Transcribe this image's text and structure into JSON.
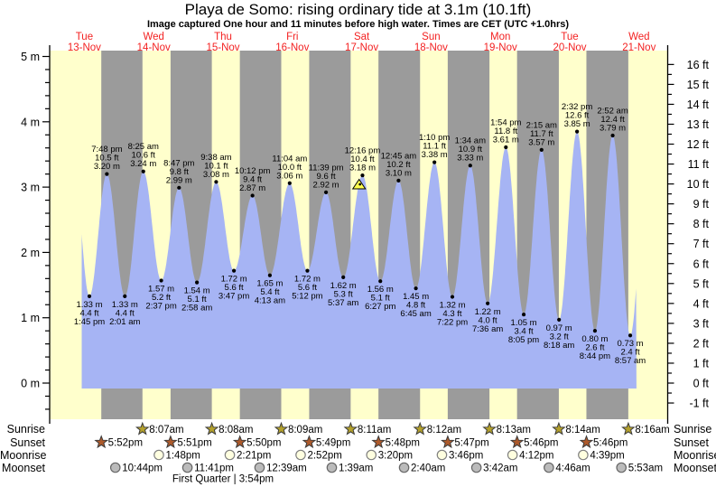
{
  "title": "Playa de Somo: rising  ordinary tide at 3.1m (10.1ft)",
  "subtitle": "Image captured One hour and 11 minutes before high water. Times are CET (UTC +1.0hrs)",
  "colors": {
    "day_band": "#ffffcc",
    "night_band": "#9b9b9b",
    "water": "#a6b4f4",
    "day_label": "#f32121",
    "sunrise_star": "#b3a02c",
    "sunset_star": "#ad5a2b",
    "moonrise_fill": "#ffffe0",
    "moonset_fill": "#bbbbbb",
    "marker_triangle": "#ffff4d"
  },
  "days": [
    {
      "name": "Tue",
      "date": "13-Nov"
    },
    {
      "name": "Wed",
      "date": "14-Nov"
    },
    {
      "name": "Thu",
      "date": "15-Nov"
    },
    {
      "name": "Fri",
      "date": "16-Nov"
    },
    {
      "name": "Sat",
      "date": "17-Nov"
    },
    {
      "name": "Sun",
      "date": "18-Nov"
    },
    {
      "name": "Mon",
      "date": "19-Nov"
    },
    {
      "name": "Tue",
      "date": "20-Nov"
    },
    {
      "name": "Wed",
      "date": "21-Nov"
    }
  ],
  "axes": {
    "left_ticks": [
      {
        "value": 5,
        "label": "5 m"
      },
      {
        "value": 4,
        "label": "4 m"
      },
      {
        "value": 3,
        "label": "3 m"
      },
      {
        "value": 2,
        "label": "2 m"
      },
      {
        "value": 1,
        "label": "1 m"
      },
      {
        "value": 0,
        "label": "0 m"
      }
    ],
    "right_ticks": [
      {
        "value": 16,
        "label": "16 ft"
      },
      {
        "value": 15,
        "label": "15 ft"
      },
      {
        "value": 14,
        "label": "14 ft"
      },
      {
        "value": 13,
        "label": "13 ft"
      },
      {
        "value": 12,
        "label": "12 ft"
      },
      {
        "value": 11,
        "label": "11 ft"
      },
      {
        "value": 10,
        "label": "10 ft"
      },
      {
        "value": 9,
        "label": "9 ft"
      },
      {
        "value": 8,
        "label": "8 ft"
      },
      {
        "value": 7,
        "label": "7 ft"
      },
      {
        "value": 6,
        "label": "6 ft"
      },
      {
        "value": 5,
        "label": "5 ft"
      },
      {
        "value": 4,
        "label": "4 ft"
      },
      {
        "value": 3,
        "label": "3 ft"
      },
      {
        "value": 2,
        "label": "2 ft"
      },
      {
        "value": 1,
        "label": "1 ft"
      },
      {
        "value": 0,
        "label": "0 ft"
      },
      {
        "value": -1,
        "label": "-1 ft"
      }
    ]
  },
  "chart_data": {
    "type": "area",
    "title": "Playa de Somo: rising  ordinary tide at 3.1m (10.1ft)",
    "ylabel_left": "m",
    "ylabel_right": "ft",
    "ylim_m": [
      -0.6,
      5.1
    ],
    "x_range": "Tue 13-Nov 00:00 to Wed 21-Nov ~14:00",
    "tide_events": [
      {
        "kind": "low",
        "day": 0,
        "hour": 13.75,
        "time": "1:45 pm",
        "ft": "4.4 ft",
        "m": "1.33 m",
        "h": 1.33
      },
      {
        "kind": "high",
        "day": 0,
        "hour": 19.8,
        "time": "7:48 pm",
        "ft": "10.5 ft",
        "m": "3.20 m",
        "h": 3.2
      },
      {
        "kind": "low",
        "day": 1,
        "hour": 2.02,
        "time": "2:01 am",
        "ft": "4.4 ft",
        "m": "1.33 m",
        "h": 1.33
      },
      {
        "kind": "high",
        "day": 1,
        "hour": 8.42,
        "time": "8:25 am",
        "ft": "10.6 ft",
        "m": "3.24 m",
        "h": 3.24
      },
      {
        "kind": "low",
        "day": 1,
        "hour": 14.62,
        "time": "2:37 pm",
        "ft": "5.2 ft",
        "m": "1.57 m",
        "h": 1.57
      },
      {
        "kind": "high",
        "day": 1,
        "hour": 20.78,
        "time": "8:47 pm",
        "ft": "9.8 ft",
        "m": "2.99 m",
        "h": 2.99
      },
      {
        "kind": "low",
        "day": 2,
        "hour": 2.97,
        "time": "2:58 am",
        "ft": "5.1 ft",
        "m": "1.54 m",
        "h": 1.54
      },
      {
        "kind": "high",
        "day": 2,
        "hour": 9.63,
        "time": "9:38 am",
        "ft": "10.1 ft",
        "m": "3.08 m",
        "h": 3.08
      },
      {
        "kind": "low",
        "day": 2,
        "hour": 15.78,
        "time": "3:47 pm",
        "ft": "5.6 ft",
        "m": "1.72 m",
        "h": 1.72
      },
      {
        "kind": "high",
        "day": 2,
        "hour": 22.2,
        "time": "10:12 pm",
        "ft": "9.4 ft",
        "m": "2.87 m",
        "h": 2.87
      },
      {
        "kind": "low",
        "day": 3,
        "hour": 4.22,
        "time": "4:13 am",
        "ft": "5.4 ft",
        "m": "1.65 m",
        "h": 1.65
      },
      {
        "kind": "high",
        "day": 3,
        "hour": 11.07,
        "time": "11:04 am",
        "ft": "10.0 ft",
        "m": "3.06 m",
        "h": 3.06
      },
      {
        "kind": "low",
        "day": 3,
        "hour": 17.2,
        "time": "5:12 pm",
        "ft": "5.6 ft",
        "m": "1.72 m",
        "h": 1.72
      },
      {
        "kind": "high",
        "day": 3,
        "hour": 23.65,
        "time": "11:39 pm",
        "ft": "9.6 ft",
        "m": "2.92 m",
        "h": 2.92
      },
      {
        "kind": "low",
        "day": 4,
        "hour": 5.62,
        "time": "5:37 am",
        "ft": "5.3 ft",
        "m": "1.62 m",
        "h": 1.62
      },
      {
        "kind": "high",
        "day": 4,
        "hour": 12.27,
        "time": "12:16 pm",
        "ft": "10.4 ft",
        "m": "3.18 m",
        "h": 3.18
      },
      {
        "kind": "low",
        "day": 4,
        "hour": 18.45,
        "time": "6:27 pm",
        "ft": "5.1 ft",
        "m": "1.56 m",
        "h": 1.56
      },
      {
        "kind": "high",
        "day": 5,
        "hour": 0.75,
        "time": "12:45 am",
        "ft": "10.2 ft",
        "m": "3.10 m",
        "h": 3.1
      },
      {
        "kind": "low",
        "day": 5,
        "hour": 6.75,
        "time": "6:45 am",
        "ft": "4.8 ft",
        "m": "1.45 m",
        "h": 1.45
      },
      {
        "kind": "high",
        "day": 5,
        "hour": 13.17,
        "time": "1:10 pm",
        "ft": "11.1 ft",
        "m": "3.38 m",
        "h": 3.38
      },
      {
        "kind": "low",
        "day": 5,
        "hour": 19.37,
        "time": "7:22 pm",
        "ft": "4.3 ft",
        "m": "1.32 m",
        "h": 1.32
      },
      {
        "kind": "high",
        "day": 6,
        "hour": 1.57,
        "time": "1:34 am",
        "ft": "10.9 ft",
        "m": "3.33 m",
        "h": 3.33
      },
      {
        "kind": "low",
        "day": 6,
        "hour": 7.6,
        "time": "7:36 am",
        "ft": "4.0 ft",
        "m": "1.22 m",
        "h": 1.22
      },
      {
        "kind": "high",
        "day": 6,
        "hour": 13.9,
        "time": "1:54 pm",
        "ft": "11.8 ft",
        "m": "3.61 m",
        "h": 3.61
      },
      {
        "kind": "low",
        "day": 6,
        "hour": 20.08,
        "time": "8:05 pm",
        "ft": "3.4 ft",
        "m": "1.05 m",
        "h": 1.05
      },
      {
        "kind": "high",
        "day": 7,
        "hour": 2.25,
        "time": "2:15 am",
        "ft": "11.7 ft",
        "m": "3.57 m",
        "h": 3.57
      },
      {
        "kind": "low",
        "day": 7,
        "hour": 8.3,
        "time": "8:18 am",
        "ft": "3.2 ft",
        "m": "0.97 m",
        "h": 0.97
      },
      {
        "kind": "high",
        "day": 7,
        "hour": 14.53,
        "time": "2:32 pm",
        "ft": "12.6 ft",
        "m": "3.85 m",
        "h": 3.85
      },
      {
        "kind": "low",
        "day": 7,
        "hour": 20.73,
        "time": "8:44 pm",
        "ft": "2.6 ft",
        "m": "0.80 m",
        "h": 0.8
      },
      {
        "kind": "high",
        "day": 8,
        "hour": 2.87,
        "time": "2:52 am",
        "ft": "12.4 ft",
        "m": "3.79 m",
        "h": 3.79
      },
      {
        "kind": "low",
        "day": 8,
        "hour": 8.95,
        "time": "8:57 am",
        "ft": "2.4 ft",
        "m": "0.73 m",
        "h": 0.73
      }
    ],
    "current_marker": {
      "day": 4,
      "hour": 11.1
    }
  },
  "sun_moon": {
    "row_labels": [
      "Sunrise",
      "Sunset",
      "Moonrise",
      "Moonset"
    ],
    "sunrise": [
      {
        "day": 1,
        "hour": 8.12,
        "time": "8:07am"
      },
      {
        "day": 2,
        "hour": 8.13,
        "time": "8:08am"
      },
      {
        "day": 3,
        "hour": 8.15,
        "time": "8:09am"
      },
      {
        "day": 4,
        "hour": 8.18,
        "time": "8:11am"
      },
      {
        "day": 5,
        "hour": 8.2,
        "time": "8:12am"
      },
      {
        "day": 6,
        "hour": 8.22,
        "time": "8:13am"
      },
      {
        "day": 7,
        "hour": 8.23,
        "time": "8:14am"
      },
      {
        "day": 8,
        "hour": 8.27,
        "time": "8:16am"
      }
    ],
    "sunset": [
      {
        "day": 0,
        "hour": 17.87,
        "time": "5:52pm"
      },
      {
        "day": 1,
        "hour": 17.85,
        "time": "5:51pm"
      },
      {
        "day": 2,
        "hour": 17.83,
        "time": "5:50pm"
      },
      {
        "day": 3,
        "hour": 17.82,
        "time": "5:49pm"
      },
      {
        "day": 4,
        "hour": 17.8,
        "time": "5:48pm"
      },
      {
        "day": 5,
        "hour": 17.78,
        "time": "5:47pm"
      },
      {
        "day": 6,
        "hour": 17.77,
        "time": "5:46pm"
      },
      {
        "day": 7,
        "hour": 17.77,
        "time": "5:46pm"
      }
    ],
    "moonrise": [
      {
        "day": 1,
        "hour": 13.8,
        "time": "1:48pm"
      },
      {
        "day": 2,
        "hour": 14.35,
        "time": "2:21pm"
      },
      {
        "day": 3,
        "hour": 14.87,
        "time": "2:52pm"
      },
      {
        "day": 4,
        "hour": 15.33,
        "time": "3:20pm"
      },
      {
        "day": 5,
        "hour": 15.77,
        "time": "3:46pm"
      },
      {
        "day": 6,
        "hour": 16.2,
        "time": "4:12pm"
      },
      {
        "day": 7,
        "hour": 16.65,
        "time": "4:39pm"
      }
    ],
    "moonset": [
      {
        "day": 0,
        "hour": 22.73,
        "time": "10:44pm"
      },
      {
        "day": 1,
        "hour": 23.68,
        "time": "11:41pm"
      },
      {
        "day": 3,
        "hour": 0.65,
        "time": "12:39am"
      },
      {
        "day": 4,
        "hour": 1.65,
        "time": "1:39am"
      },
      {
        "day": 5,
        "hour": 2.67,
        "time": "2:40am"
      },
      {
        "day": 6,
        "hour": 3.7,
        "time": "3:42am"
      },
      {
        "day": 7,
        "hour": 4.77,
        "time": "4:46am"
      },
      {
        "day": 8,
        "hour": 5.88,
        "time": "5:53am"
      }
    ],
    "moon_phase": {
      "label": "First Quarter",
      "time": "3:54pm",
      "day": 2
    }
  }
}
